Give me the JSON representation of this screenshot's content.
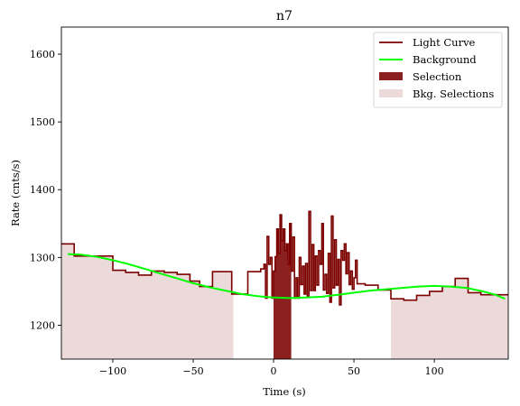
{
  "chart_data": {
    "type": "line",
    "title": "n7",
    "xlabel": "Time (s)",
    "ylabel": "Rate (cnts/s)",
    "xlim": [
      -132,
      146
    ],
    "ylim": [
      1150,
      1640
    ],
    "xticks": [
      -100,
      -50,
      0,
      50,
      100
    ],
    "yticks": [
      1200,
      1300,
      1400,
      1500,
      1600
    ],
    "xtick_labels": [
      "−100",
      "−50",
      "0",
      "50",
      "100"
    ],
    "ytick_labels": [
      "1200",
      "1300",
      "1400",
      "1500",
      "1600"
    ],
    "grid": false,
    "legend_position": "top-right",
    "colors": {
      "light_curve": "#7b0000",
      "background": "#00ff00",
      "selection": "#8b2020",
      "bkg_selection": "#ecd9d9"
    },
    "series": [
      {
        "name": "Light Curve",
        "kind": "step",
        "edges": [
          -132,
          -124,
          -108,
          -100,
          -92,
          -84,
          -76,
          -68,
          -60,
          -52,
          -46,
          -38,
          -26,
          -16,
          -8,
          -6,
          -5,
          -4,
          -3,
          -2,
          -1,
          0,
          1,
          2,
          3,
          4,
          5,
          6,
          7,
          8,
          9,
          10,
          11,
          12,
          13,
          14,
          15,
          16,
          17,
          18,
          19,
          20,
          21,
          22,
          23,
          24,
          25,
          26,
          27,
          28,
          29,
          30,
          31,
          32,
          33,
          34,
          35,
          36,
          37,
          38,
          39,
          40,
          41,
          42,
          43,
          44,
          45,
          46,
          47,
          48,
          49,
          50,
          51,
          52,
          57,
          65,
          73,
          81,
          89,
          97,
          105,
          113,
          121,
          129,
          137,
          146
        ],
        "values": [
          1320,
          1302,
          1302,
          1281,
          1278,
          1274,
          1280,
          1278,
          1275,
          1265,
          1257,
          1279,
          1246,
          1279,
          1283,
          1290,
          1240,
          1331,
          1290,
          1300,
          1240,
          1280,
          1301,
          1342,
          1306,
          1363,
          1325,
          1342,
          1310,
          1320,
          1290,
          1350,
          1280,
          1330,
          1240,
          1270,
          1240,
          1300,
          1260,
          1287,
          1246,
          1291,
          1241,
          1368,
          1251,
          1319,
          1251,
          1302,
          1259,
          1310,
          1290,
          1350,
          1252,
          1275,
          1247,
          1306,
          1234,
          1361,
          1255,
          1326,
          1259,
          1297,
          1230,
          1310,
          1296,
          1320,
          1276,
          1307,
          1260,
          1280,
          1253,
          1270,
          1296,
          1261,
          1259,
          1252,
          1239,
          1237,
          1244,
          1250,
          1257,
          1269,
          1248,
          1245,
          1245
        ]
      },
      {
        "name": "Background",
        "kind": "line",
        "x": [
          -128,
          -120,
          -110,
          -100,
          -90,
          -80,
          -70,
          -60,
          -50,
          -40,
          -30,
          -20,
          -10,
          0,
          10,
          20,
          30,
          40,
          50,
          60,
          70,
          80,
          90,
          100,
          110,
          120,
          130,
          138,
          144
        ],
        "y": [
          1305,
          1304,
          1301,
          1296,
          1290,
          1283,
          1276,
          1269,
          1262,
          1256,
          1251,
          1246,
          1243,
          1241,
          1240,
          1241,
          1242,
          1245,
          1248,
          1251,
          1253,
          1255,
          1257,
          1258,
          1257,
          1255,
          1250,
          1245,
          1239
        ]
      },
      {
        "name": "Selection",
        "kind": "filled-step",
        "range": [
          0,
          11
        ]
      },
      {
        "name": "Bkg. Selections",
        "kind": "filled-step",
        "ranges": [
          [
            -132,
            -25
          ],
          [
            73,
            146
          ]
        ]
      }
    ]
  }
}
